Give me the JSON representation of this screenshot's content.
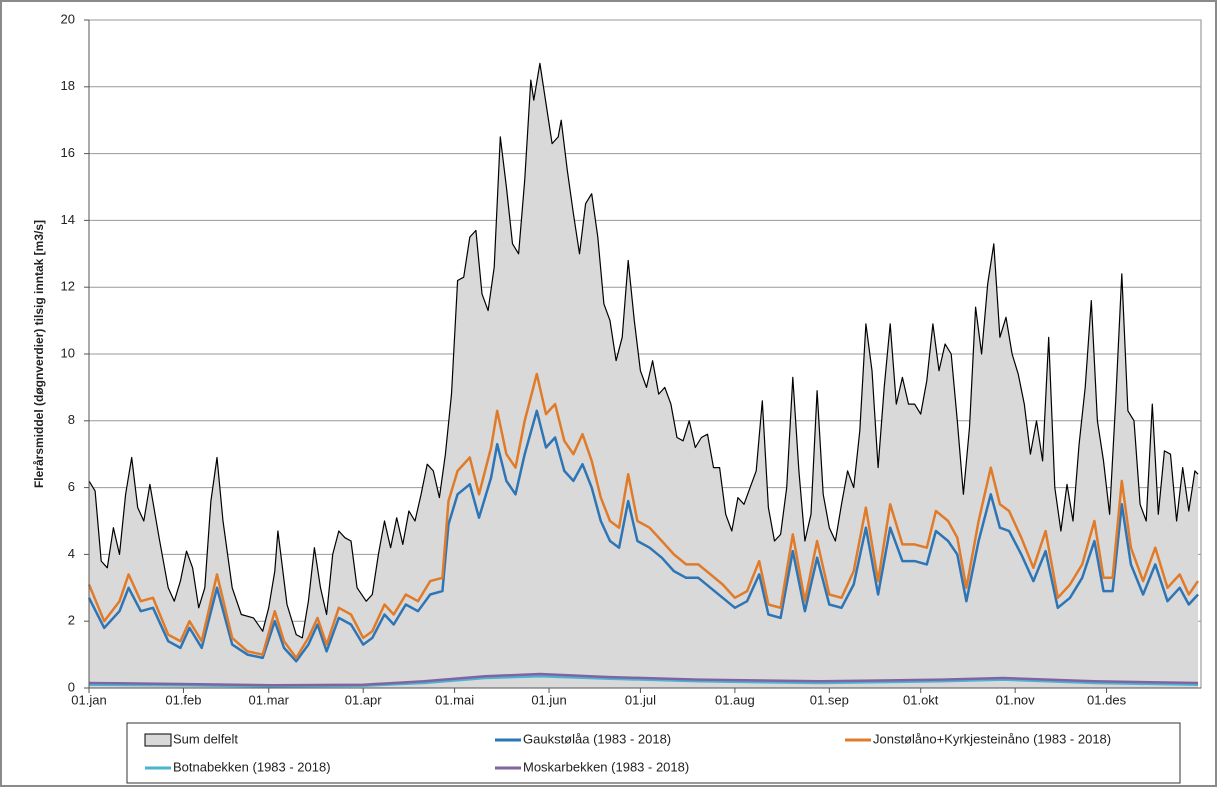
{
  "chart_data": {
    "type": "line",
    "y_label": "Flerårsmiddel (døgnverdier) tilsig inntak [m3/s]",
    "xlim": [
      0,
      365
    ],
    "ylim": [
      0,
      20
    ],
    "yticks": [
      0,
      2,
      4,
      6,
      8,
      10,
      12,
      14,
      16,
      18,
      20
    ],
    "xticks": [
      {
        "value": 0,
        "label": "01.jan"
      },
      {
        "value": 31,
        "label": "01.feb"
      },
      {
        "value": 59,
        "label": "01.mar"
      },
      {
        "value": 90,
        "label": "01.apr"
      },
      {
        "value": 120,
        "label": "01.mai"
      },
      {
        "value": 151,
        "label": "01.jun"
      },
      {
        "value": 181,
        "label": "01.jul"
      },
      {
        "value": 212,
        "label": "01.aug"
      },
      {
        "value": 243,
        "label": "01.sep"
      },
      {
        "value": 273,
        "label": "01.okt"
      },
      {
        "value": 304,
        "label": "01.nov"
      },
      {
        "value": 334,
        "label": "01.des"
      }
    ],
    "grid": true,
    "series": [
      {
        "name": "Sum delfelt",
        "color": "#000000",
        "fill": "#d9d9d9",
        "style": "area",
        "x": [
          0,
          2,
          4,
          6,
          8,
          10,
          12,
          14,
          16,
          18,
          20,
          23,
          26,
          28,
          30,
          32,
          34,
          36,
          38,
          40,
          42,
          44,
          47,
          50,
          54,
          57,
          59,
          61,
          62,
          65,
          68,
          70,
          72,
          74,
          76,
          78,
          80,
          82,
          84,
          86,
          88,
          91,
          93,
          95,
          97,
          99,
          101,
          103,
          105,
          107,
          109,
          111,
          113,
          115,
          117,
          119,
          121,
          123,
          125,
          127,
          129,
          131,
          133,
          135,
          137,
          139,
          141,
          143,
          145,
          146,
          148,
          150,
          152,
          154,
          155,
          157,
          159,
          161,
          163,
          165,
          167,
          169,
          171,
          173,
          175,
          177,
          179,
          181,
          183,
          185,
          187,
          189,
          191,
          193,
          195,
          197,
          199,
          201,
          203,
          205,
          207,
          209,
          211,
          213,
          215,
          217,
          219,
          221,
          223,
          225,
          227,
          229,
          231,
          233,
          235,
          237,
          239,
          241,
          243,
          245,
          247,
          249,
          251,
          253,
          255,
          257,
          259,
          261,
          263,
          265,
          267,
          269,
          271,
          273,
          275,
          277,
          279,
          281,
          283,
          285,
          287,
          289,
          291,
          293,
          295,
          297,
          299,
          301,
          303,
          305,
          307,
          309,
          311,
          313,
          315,
          317,
          319,
          321,
          323,
          325,
          327,
          329,
          331,
          333,
          335,
          337,
          339,
          341,
          343,
          345,
          347,
          349,
          351,
          353,
          355,
          357,
          359,
          361,
          363,
          364
        ],
        "values": [
          6.2,
          5.9,
          3.8,
          3.6,
          4.8,
          4.0,
          5.8,
          6.9,
          5.4,
          5.0,
          6.1,
          4.5,
          3.0,
          2.6,
          3.2,
          4.1,
          3.6,
          2.4,
          3.0,
          5.6,
          6.9,
          5.0,
          3.0,
          2.2,
          2.1,
          1.7,
          2.4,
          3.5,
          4.7,
          2.5,
          1.6,
          1.5,
          2.6,
          4.2,
          3.0,
          2.2,
          4.0,
          4.7,
          4.5,
          4.4,
          3.0,
          2.6,
          2.8,
          4.0,
          5.0,
          4.2,
          5.1,
          4.3,
          5.3,
          5.0,
          5.8,
          6.7,
          6.5,
          5.7,
          7.0,
          8.8,
          12.2,
          12.3,
          13.5,
          13.7,
          11.8,
          11.3,
          12.6,
          16.5,
          15.0,
          13.3,
          13.0,
          15.2,
          18.2,
          17.6,
          18.7,
          17.5,
          16.3,
          16.5,
          17.0,
          15.5,
          14.2,
          13.0,
          14.5,
          14.8,
          13.5,
          11.5,
          11.0,
          9.8,
          10.5,
          12.8,
          11.0,
          9.5,
          9.0,
          9.8,
          8.8,
          9.0,
          8.5,
          7.5,
          7.4,
          8.0,
          7.2,
          7.5,
          7.6,
          6.6,
          6.6,
          5.2,
          4.7,
          5.7,
          5.5,
          6.0,
          6.5,
          8.6,
          5.4,
          4.4,
          4.6,
          6.0,
          9.3,
          6.5,
          4.4,
          5.2,
          8.9,
          5.8,
          4.8,
          4.4,
          5.5,
          6.5,
          6.0,
          7.7,
          10.9,
          9.5,
          6.6,
          9.0,
          10.9,
          8.5,
          9.3,
          8.5,
          8.5,
          8.2,
          9.2,
          10.9,
          9.5,
          10.3,
          10.0,
          8.0,
          5.8,
          7.8,
          11.4,
          10.0,
          12.1,
          13.3,
          10.5,
          11.1,
          10.0,
          9.4,
          8.5,
          7.0,
          8.0,
          6.8,
          10.5,
          6.0,
          4.7,
          6.1,
          5.0,
          7.3,
          9.0,
          11.6,
          8.0,
          6.8,
          5.2,
          8.6,
          12.4,
          8.3,
          8.0,
          5.5,
          5.0,
          8.5,
          5.2,
          7.1,
          7.0,
          5.0,
          6.6,
          5.3,
          6.5,
          6.4
        ]
      },
      {
        "name": "Gaukstølåa (1983 - 2018)",
        "color": "#2e75b6",
        "style": "line",
        "x": [
          0,
          5,
          10,
          13,
          17,
          21,
          26,
          30,
          33,
          37,
          42,
          47,
          52,
          57,
          61,
          64,
          68,
          72,
          75,
          78,
          82,
          86,
          90,
          93,
          97,
          100,
          104,
          108,
          112,
          116,
          118,
          121,
          125,
          128,
          132,
          134,
          137,
          140,
          143,
          147,
          150,
          153,
          156,
          159,
          162,
          165,
          168,
          171,
          174,
          177,
          180,
          184,
          188,
          192,
          196,
          200,
          204,
          208,
          212,
          216,
          220,
          223,
          227,
          231,
          235,
          239,
          243,
          247,
          251,
          255,
          259,
          263,
          267,
          271,
          275,
          278,
          282,
          285,
          288,
          292,
          296,
          299,
          302,
          306,
          310,
          314,
          318,
          322,
          326,
          330,
          333,
          336,
          339,
          342,
          346,
          350,
          354,
          358,
          361,
          364
        ],
        "values": [
          2.7,
          1.8,
          2.3,
          3.0,
          2.3,
          2.4,
          1.4,
          1.2,
          1.8,
          1.2,
          3.0,
          1.3,
          1.0,
          0.9,
          2.0,
          1.2,
          0.8,
          1.3,
          1.9,
          1.1,
          2.1,
          1.9,
          1.3,
          1.5,
          2.2,
          1.9,
          2.5,
          2.3,
          2.8,
          2.9,
          4.9,
          5.8,
          6.1,
          5.1,
          6.3,
          7.3,
          6.2,
          5.8,
          7.0,
          8.3,
          7.2,
          7.5,
          6.5,
          6.2,
          6.7,
          6.0,
          5.0,
          4.4,
          4.2,
          5.6,
          4.4,
          4.2,
          3.9,
          3.5,
          3.3,
          3.3,
          3.0,
          2.7,
          2.4,
          2.6,
          3.4,
          2.2,
          2.1,
          4.1,
          2.3,
          3.9,
          2.5,
          2.4,
          3.1,
          4.8,
          2.8,
          4.8,
          3.8,
          3.8,
          3.7,
          4.7,
          4.4,
          4.0,
          2.6,
          4.4,
          5.8,
          4.8,
          4.7,
          4.0,
          3.2,
          4.1,
          2.4,
          2.7,
          3.3,
          4.4,
          2.9,
          2.9,
          5.5,
          3.7,
          2.8,
          3.7,
          2.6,
          3.0,
          2.5,
          2.8
        ]
      },
      {
        "name": "Jonstølåno+Kyrkjesteinåno (1983 - 2018)",
        "color": "#e07b2a",
        "style": "line",
        "x": [
          0,
          5,
          10,
          13,
          17,
          21,
          26,
          30,
          33,
          37,
          42,
          47,
          52,
          57,
          61,
          64,
          68,
          72,
          75,
          78,
          82,
          86,
          90,
          93,
          97,
          100,
          104,
          108,
          112,
          116,
          118,
          121,
          125,
          128,
          132,
          134,
          137,
          140,
          143,
          147,
          150,
          153,
          156,
          159,
          162,
          165,
          168,
          171,
          174,
          177,
          180,
          184,
          188,
          192,
          196,
          200,
          204,
          208,
          212,
          216,
          220,
          223,
          227,
          231,
          235,
          239,
          243,
          247,
          251,
          255,
          259,
          263,
          267,
          271,
          275,
          278,
          282,
          285,
          288,
          292,
          296,
          299,
          302,
          306,
          310,
          314,
          318,
          322,
          326,
          330,
          333,
          336,
          339,
          342,
          346,
          350,
          354,
          358,
          361,
          364
        ],
        "values": [
          3.1,
          2.0,
          2.6,
          3.4,
          2.6,
          2.7,
          1.6,
          1.4,
          2.0,
          1.4,
          3.4,
          1.5,
          1.1,
          1.0,
          2.3,
          1.4,
          0.9,
          1.5,
          2.1,
          1.3,
          2.4,
          2.2,
          1.5,
          1.7,
          2.5,
          2.2,
          2.8,
          2.6,
          3.2,
          3.3,
          5.6,
          6.5,
          6.9,
          5.8,
          7.2,
          8.3,
          7.0,
          6.6,
          8.0,
          9.4,
          8.2,
          8.5,
          7.4,
          7.0,
          7.6,
          6.8,
          5.7,
          5.0,
          4.8,
          6.4,
          5.0,
          4.8,
          4.4,
          4.0,
          3.7,
          3.7,
          3.4,
          3.1,
          2.7,
          2.9,
          3.8,
          2.5,
          2.4,
          4.6,
          2.6,
          4.4,
          2.8,
          2.7,
          3.5,
          5.4,
          3.2,
          5.5,
          4.3,
          4.3,
          4.2,
          5.3,
          5.0,
          4.5,
          3.0,
          5.0,
          6.6,
          5.5,
          5.3,
          4.5,
          3.6,
          4.7,
          2.7,
          3.1,
          3.7,
          5.0,
          3.3,
          3.3,
          6.2,
          4.2,
          3.2,
          4.2,
          3.0,
          3.4,
          2.8,
          3.2
        ]
      },
      {
        "name": "Botnabekken (1983 - 2018)",
        "color": "#4bb3d4",
        "style": "line",
        "x": [
          0,
          30,
          60,
          90,
          110,
          130,
          148,
          170,
          200,
          240,
          280,
          300,
          330,
          364
        ],
        "values": [
          0.1,
          0.08,
          0.05,
          0.07,
          0.15,
          0.3,
          0.35,
          0.28,
          0.2,
          0.15,
          0.2,
          0.25,
          0.15,
          0.1
        ]
      },
      {
        "name": "Moskarbekken (1983 - 2018)",
        "color": "#8064a2",
        "style": "line",
        "x": [
          0,
          30,
          60,
          90,
          110,
          130,
          148,
          170,
          200,
          240,
          280,
          300,
          330,
          364
        ],
        "values": [
          0.15,
          0.12,
          0.08,
          0.1,
          0.2,
          0.35,
          0.42,
          0.33,
          0.25,
          0.2,
          0.25,
          0.3,
          0.2,
          0.15
        ]
      }
    ]
  }
}
